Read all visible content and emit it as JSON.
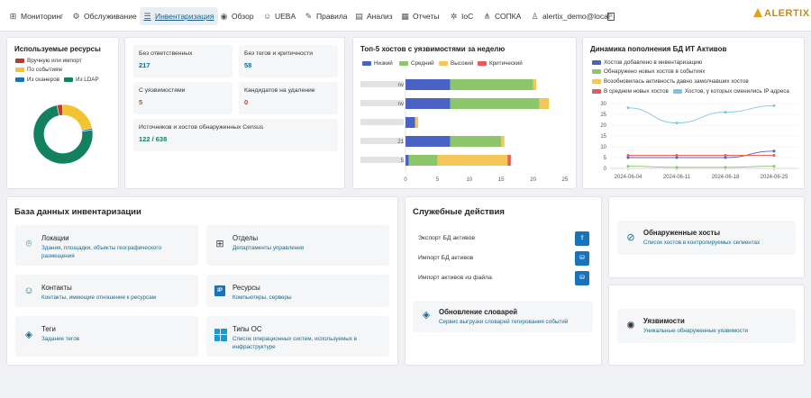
{
  "nav": {
    "items": [
      {
        "label": "Мониторинг",
        "icon": "dashboard-icon"
      },
      {
        "label": "Обслуживание",
        "icon": "gear-icon"
      },
      {
        "label": "Инвентаризация",
        "icon": "inventory-icon",
        "active": true
      },
      {
        "label": "Обзор",
        "icon": "eye-icon"
      },
      {
        "label": "UEBA",
        "icon": "users-icon"
      },
      {
        "label": "Правила",
        "icon": "pencil-icon"
      },
      {
        "label": "Анализ",
        "icon": "chart-icon"
      },
      {
        "label": "Отчеты",
        "icon": "report-icon"
      },
      {
        "label": "IoC",
        "icon": "settings-icon"
      },
      {
        "label": "СОПКА",
        "icon": "network-icon"
      },
      {
        "label": "alertix_demo@local",
        "icon": "user-icon"
      }
    ],
    "logo_text": "ALERTIX"
  },
  "resources": {
    "title": "Используемые ресурсы",
    "legend": [
      {
        "label": "Вручную или импорт",
        "color": "#c0392b"
      },
      {
        "label": "По событиям",
        "color": "#f4c430"
      },
      {
        "label": "Из сканеров",
        "color": "#1a73b8"
      },
      {
        "label": "Из LDAP",
        "color": "#138060"
      }
    ]
  },
  "stats": {
    "no_owner": {
      "label": "Без ответственных",
      "value": "217"
    },
    "no_tags": {
      "label": "Без тегов и критичности",
      "value": "58"
    },
    "with_vulns": {
      "label": "С уязвимостями",
      "value": "5"
    },
    "to_delete": {
      "label": "Кандидатов на удаление",
      "value": "0"
    },
    "census": {
      "label": "Источников и хостов обнаруженных Census",
      "value": "122 / 638"
    }
  },
  "top5": {
    "title": "Топ-5 хостов с уязвимостями за неделю"
  },
  "dynamics": {
    "title": "Динамика пополнения БД ИТ Активов"
  },
  "chart_data": [
    {
      "type": "pie",
      "labels": [
        "Вручную или импорт",
        "По событиям",
        "Из сканеров",
        "Из LDAP"
      ],
      "values": [
        3,
        22,
        1,
        74
      ],
      "colors": [
        "#c0392b",
        "#f4c430",
        "#1a73b8",
        "#138060"
      ],
      "title": "Используемые ресурсы"
    },
    {
      "type": "bar",
      "orientation": "horizontal",
      "stacked": true,
      "title": "Топ-5 хостов с уязвимостями за неделю",
      "categories": [
        "",
        "",
        "",
        "",
        ""
      ],
      "category_suffixes": [
        "nv",
        "nv",
        "",
        "21",
        "5"
      ],
      "series": [
        {
          "name": "Низкий",
          "color": "#4a62c4",
          "values": [
            7,
            7,
            1.5,
            7,
            0.5
          ]
        },
        {
          "name": "Средний",
          "color": "#8cc66a",
          "values": [
            13,
            14,
            0,
            8,
            4.5
          ]
        },
        {
          "name": "Высокий",
          "color": "#f4c65a",
          "values": [
            0.5,
            1.5,
            0.5,
            0.5,
            11
          ]
        },
        {
          "name": "Критический",
          "color": "#e65a5a",
          "values": [
            0,
            0,
            0,
            0,
            0.5
          ]
        }
      ],
      "xlim": [
        0,
        25
      ],
      "xticks": [
        0,
        5,
        10,
        15,
        20,
        25
      ]
    },
    {
      "type": "line",
      "title": "Динамика пополнения БД ИТ Активов",
      "x": [
        "2024-06-04",
        "2024-06-11",
        "2024-06-18",
        "2024-06-25"
      ],
      "series": [
        {
          "name": "Хостов добавлено в инвентаризацию",
          "color": "#4a62c4",
          "values": [
            5,
            5,
            5,
            8
          ]
        },
        {
          "name": "Обнаружено новых хостов в событиях",
          "color": "#8cc66a",
          "values": [
            1,
            0.5,
            0.5,
            1
          ]
        },
        {
          "name": "Возобновилась активность давно замолчавших хостов",
          "color": "#f4c65a",
          "values": [
            6,
            6,
            6,
            6
          ]
        },
        {
          "name": "В среднем новых хостов",
          "color": "#e65a5a",
          "values": [
            6,
            6,
            6,
            6
          ]
        },
        {
          "name": "Хостов, у которых сменились IP адреса",
          "color": "#7ec4e6",
          "values": [
            28,
            21,
            26,
            29
          ]
        }
      ],
      "ylim": [
        0,
        30
      ],
      "yticks": [
        0,
        5,
        10,
        15,
        20,
        25,
        30
      ]
    }
  ],
  "inventory_db": {
    "title": "База данных инвентаризации",
    "tiles": [
      {
        "title": "Локации",
        "desc": "Здания, площадки, объекты географического размещения",
        "icon": "location-icon"
      },
      {
        "title": "Отделы",
        "desc": "Департаменты управления",
        "icon": "departments-icon"
      },
      {
        "title": "Контакты",
        "desc": "Контакты, имеющие отношение к ресурсам",
        "icon": "contact-icon"
      },
      {
        "title": "Ресурсы",
        "desc": "Компьютеры, серверы",
        "icon": "ip-icon"
      },
      {
        "title": "Теги",
        "desc": "Задание тегов",
        "icon": "tag-icon"
      },
      {
        "title": "Типы ОС",
        "desc": "Список операционных систем, используемых в инфраструктуре",
        "icon": "windows-icon"
      }
    ]
  },
  "service": {
    "title": "Служебные действия",
    "actions": [
      {
        "label": "Экспорт БД активов",
        "icon": "upload-icon"
      },
      {
        "label": "Импорт БД активов",
        "icon": "database-icon"
      },
      {
        "label": "Импорт активов из файла",
        "icon": "database-icon"
      }
    ],
    "dict": {
      "title": "Обновление словарей",
      "desc": "Сервис выгрузки словарей тегирования событий",
      "icon": "tag-icon"
    }
  },
  "discovered": {
    "title": "Обнаруженные хосты",
    "desc": "Список хостов в контролируемых сегментах",
    "icon": "compass-icon"
  },
  "vulns": {
    "title": "Уязвимости",
    "desc": "Уникальные обнаруженные уязвимости",
    "icon": "bug-icon"
  }
}
